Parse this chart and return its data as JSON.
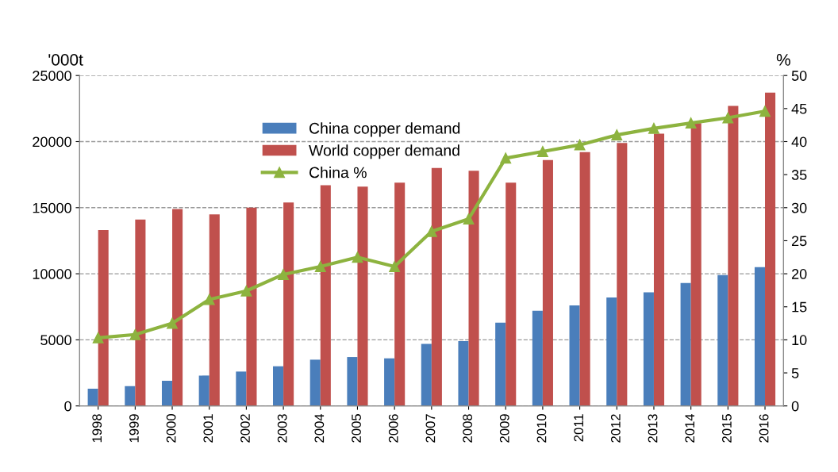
{
  "chart_data": {
    "type": "bar",
    "ylabel": "'000t",
    "y2label": "%",
    "categories": [
      "1998",
      "1999",
      "2000",
      "2001",
      "2002",
      "2003",
      "2004",
      "2005",
      "2006",
      "2007",
      "2008",
      "2009",
      "2010",
      "2011",
      "2012",
      "2013",
      "2014",
      "2015",
      "2016"
    ],
    "series": [
      {
        "name": "China copper demand",
        "color": "#4a7ebb",
        "values": [
          1300,
          1500,
          1900,
          2300,
          2600,
          3000,
          3500,
          3700,
          3600,
          4700,
          4900,
          6300,
          7200,
          7600,
          8200,
          8600,
          9300,
          9900,
          10500
        ]
      },
      {
        "name": "World copper demand",
        "color": "#c0504d",
        "values": [
          13300,
          14100,
          14900,
          14500,
          15000,
          15400,
          16700,
          16600,
          16900,
          18000,
          17800,
          16900,
          18600,
          19200,
          19900,
          20600,
          21400,
          22700,
          23700
        ]
      },
      {
        "name": "China %",
        "type": "line",
        "axis": "y2",
        "color": "#8db33f",
        "marker": "triangle",
        "values": [
          10.3,
          10.8,
          12.5,
          16.1,
          17.4,
          19.9,
          21.1,
          22.5,
          21.1,
          26.4,
          28.3,
          37.5,
          38.5,
          39.5,
          41.0,
          42.0,
          42.8,
          43.6,
          44.6
        ]
      }
    ],
    "ylim": [
      0,
      25000
    ],
    "yticks": [
      0,
      5000,
      10000,
      15000,
      20000,
      25000
    ],
    "y2lim": [
      0,
      50
    ],
    "y2ticks": [
      0,
      5,
      10,
      15,
      20,
      25,
      30,
      35,
      40,
      45,
      50
    ],
    "grid": "y",
    "legend": "top left"
  }
}
